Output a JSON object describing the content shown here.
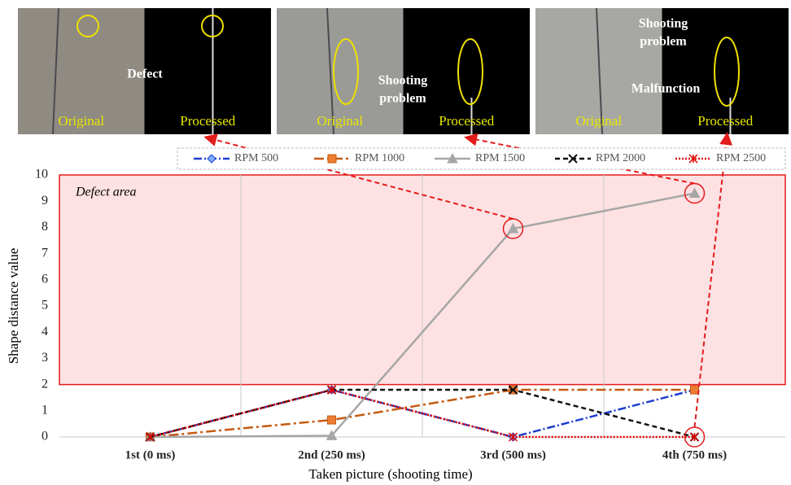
{
  "panels": [
    {
      "labels": [
        "Original",
        "Processed"
      ],
      "notes": [
        [
          "Defect"
        ]
      ]
    },
    {
      "labels": [
        "Original",
        "Processed"
      ],
      "notes": [
        [
          "Shooting",
          "problem"
        ]
      ]
    },
    {
      "labels": [
        "Original",
        "Processed"
      ],
      "notes": [
        [
          "Shooting",
          "problem"
        ],
        [
          "Malfunction"
        ]
      ]
    }
  ],
  "chart_data": {
    "type": "line",
    "x_label": "Taken picture (shooting time)",
    "y_label": "Shape distance value",
    "categories": [
      "1st (0 ms)",
      "2nd (250 ms)",
      "3rd (500 ms)",
      "4th (750 ms)"
    ],
    "series": [
      {
        "name": "RPM 500",
        "color": "#1f3fd0",
        "marker": "diamond",
        "dash": "10 3 2 3",
        "values": [
          0,
          1.8,
          0,
          1.8
        ]
      },
      {
        "name": "RPM 1000",
        "color": "#c55a11",
        "marker": "square",
        "dash": "12 4 3 4",
        "values": [
          0,
          0.65,
          1.8,
          1.8
        ]
      },
      {
        "name": "RPM 1500",
        "color": "#a6a6a6",
        "marker": "triangle",
        "dash": "none",
        "values": [
          0,
          0.05,
          7.95,
          9.3
        ]
      },
      {
        "name": "RPM 2000",
        "color": "#111111",
        "marker": "x",
        "dash": "6 4",
        "values": [
          0,
          1.8,
          1.8,
          0
        ]
      },
      {
        "name": "RPM 2500",
        "color": "#e00000",
        "marker": "asterisk",
        "dash": "2 2",
        "values": [
          0,
          1.8,
          0,
          0
        ]
      }
    ],
    "ylim": [
      0,
      10
    ],
    "yticks": [
      0,
      1,
      2,
      3,
      4,
      5,
      6,
      7,
      8,
      9,
      10
    ],
    "grid": true,
    "legend": "top",
    "defect_area": {
      "label": "Defect area",
      "range": [
        2,
        10
      ],
      "color": "#e31b1b"
    }
  }
}
